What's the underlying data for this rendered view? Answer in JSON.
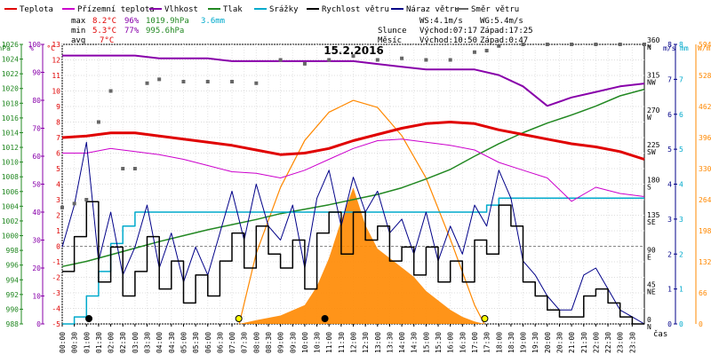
{
  "legend": [
    {
      "label": "Teplota",
      "color": "#e00000"
    },
    {
      "label": "Přízemní teplota",
      "color": "#cc00cc"
    },
    {
      "label": "Vlhkost",
      "color": "#8800aa"
    },
    {
      "label": "Tlak",
      "color": "#228822"
    },
    {
      "label": "Srážky",
      "color": "#00aacc"
    },
    {
      "label": "Rychlost větru",
      "color": "#000000"
    },
    {
      "label": "Náraz větru",
      "color": "#000088"
    },
    {
      "label": "Směr větru",
      "color": "#666666"
    }
  ],
  "stats": {
    "max_label": "max",
    "max_temp": "8.2°C",
    "max_hum": "96%",
    "max_press": "1019.9hPa",
    "max_rain": "3.6mm",
    "min_label": "min",
    "min_temp": "5.3°C",
    "min_hum": "77%",
    "min_press": "995.6hPa",
    "avg_label": "avg",
    "avg_temp": "7°C"
  },
  "wind_info": {
    "ws": "WS:4.1m/s",
    "wg": "WG:5.4m/s"
  },
  "sun": {
    "label": "Slunce",
    "rise": "Východ:07:17",
    "set": "Západ:17:25"
  },
  "moon": {
    "label": "Měsíc",
    "rise": "Východ:10:50",
    "set": "Západ:0:47"
  },
  "colors": {
    "temp": "#e00000",
    "ground": "#cc00cc",
    "hum": "#8800aa",
    "press": "#228822",
    "rain": "#00aacc",
    "wind": "#000000",
    "gust": "#000088",
    "dir": "#666666",
    "solar": "#ff8800",
    "axis_hpa": "#228822",
    "axis_pct": "#8800aa",
    "axis_temp": "#e00000",
    "axis_ms": "#000088",
    "axis_mm": "#00aacc",
    "axis_solar": "#ff8800"
  },
  "chart_data": {
    "type": "line",
    "title": "15.2.2016",
    "xlabel": "čas",
    "x_ticks": [
      "00:00",
      "00:30",
      "01:00",
      "01:30",
      "02:00",
      "02:30",
      "03:00",
      "03:30",
      "04:00",
      "04:30",
      "05:00",
      "05:30",
      "06:00",
      "06:30",
      "07:00",
      "07:30",
      "08:00",
      "08:30",
      "09:00",
      "09:30",
      "10:00",
      "10:30",
      "11:00",
      "11:30",
      "12:00",
      "12:30",
      "13:00",
      "13:30",
      "14:00",
      "14:30",
      "15:00",
      "15:30",
      "16:00",
      "16:30",
      "17:00",
      "17:30",
      "18:00",
      "18:30",
      "19:00",
      "19:30",
      "20:00",
      "20:30",
      "21:00",
      "21:30",
      "22:00",
      "22:30",
      "23:00",
      "23:30"
    ],
    "axes": {
      "hpa": {
        "unit": "hPa",
        "ticks": [
          "988",
          "990",
          "992",
          "994",
          "996",
          "998",
          "1000",
          "1002",
          "1004",
          "1006",
          "1008",
          "1010",
          "1012",
          "1014",
          "1016",
          "1018",
          "1020",
          "1022",
          "1024",
          "1026"
        ],
        "range": [
          988,
          1026
        ]
      },
      "pct": {
        "unit": "%",
        "ticks": [
          "0",
          "10",
          "20",
          "30",
          "40",
          "50",
          "60",
          "70",
          "80",
          "90",
          "100"
        ],
        "range": [
          0,
          100
        ]
      },
      "temp": {
        "unit": "°C",
        "ticks": [
          "-5",
          "-4",
          "-3",
          "-2",
          "-1",
          "0",
          "1",
          "2",
          "3",
          "4",
          "5",
          "6",
          "7",
          "8",
          "9",
          "10",
          "11",
          "12",
          "13"
        ],
        "range": [
          -5,
          13
        ]
      },
      "dir": {
        "unit": "°",
        "ticks": [
          "0 N",
          "45 NE",
          "90 E",
          "135 SE",
          "180 S",
          "225 SW",
          "270 W",
          "315 NW",
          "360 N"
        ],
        "range": [
          0,
          360
        ]
      },
      "ms": {
        "unit": "m/s",
        "ticks": [
          "0",
          "1",
          "2",
          "3",
          "4",
          "5",
          "6",
          "7",
          "8"
        ],
        "range": [
          0,
          8
        ]
      },
      "mm": {
        "unit": "mm",
        "ticks": [
          "0",
          "1",
          "2",
          "3",
          "4",
          "5",
          "6",
          "7",
          "8"
        ],
        "range": [
          0,
          8
        ]
      },
      "solar": {
        "unit": "W/m²",
        "ticks": [
          "0",
          "66",
          "132",
          "198",
          "264",
          "330",
          "396",
          "462",
          "528",
          "594"
        ],
        "range": [
          0,
          594
        ]
      }
    },
    "series": [
      {
        "name": "Teplota",
        "axis": "temp",
        "x": [
          0,
          1,
          2,
          3,
          4,
          5,
          6,
          7,
          8,
          9,
          10,
          11,
          12,
          13,
          14,
          15,
          16,
          17,
          18,
          19,
          20,
          21,
          22,
          23,
          24
        ],
        "values": [
          7.0,
          7.1,
          7.3,
          7.3,
          7.1,
          6.9,
          6.7,
          6.5,
          6.2,
          5.9,
          6.0,
          6.3,
          6.8,
          7.2,
          7.6,
          7.9,
          8.0,
          7.9,
          7.5,
          7.2,
          6.9,
          6.6,
          6.4,
          6.1,
          5.6
        ]
      },
      {
        "name": "Přízemní teplota",
        "axis": "temp",
        "x": [
          0,
          1,
          2,
          3,
          4,
          5,
          6,
          7,
          8,
          9,
          10,
          11,
          12,
          13,
          14,
          15,
          16,
          17,
          18,
          19,
          20,
          21,
          22,
          23,
          24
        ],
        "values": [
          6.0,
          6.0,
          6.3,
          6.1,
          5.9,
          5.6,
          5.2,
          4.8,
          4.7,
          4.4,
          4.9,
          5.6,
          6.3,
          6.8,
          6.9,
          6.7,
          6.5,
          6.2,
          5.4,
          4.9,
          4.4,
          2.9,
          3.8,
          3.4,
          3.2
        ]
      },
      {
        "name": "Vlhkost",
        "axis": "pct",
        "x": [
          0,
          1,
          2,
          3,
          4,
          5,
          6,
          7,
          8,
          9,
          10,
          11,
          12,
          13,
          14,
          15,
          16,
          17,
          18,
          19,
          20,
          21,
          22,
          23,
          24
        ],
        "values": [
          96,
          96,
          96,
          96,
          95,
          95,
          95,
          94,
          94,
          94,
          94,
          94,
          94,
          93,
          92,
          91,
          91,
          91,
          89,
          85,
          78,
          81,
          83,
          85,
          86
        ]
      },
      {
        "name": "Tlak",
        "axis": "hpa",
        "x": [
          0,
          1,
          2,
          3,
          4,
          5,
          6,
          7,
          8,
          9,
          10,
          11,
          12,
          13,
          14,
          15,
          16,
          17,
          18,
          19,
          20,
          21,
          22,
          23,
          24
        ],
        "values": [
          995.8,
          996.5,
          997.4,
          998.3,
          999.2,
          1000.0,
          1000.8,
          1001.5,
          1002.2,
          1003.0,
          1003.6,
          1004.2,
          1004.9,
          1005.6,
          1006.5,
          1007.7,
          1009.0,
          1010.8,
          1012.5,
          1014.0,
          1015.3,
          1016.4,
          1017.6,
          1019.0,
          1019.9
        ]
      },
      {
        "name": "Srážky",
        "axis": "mm",
        "x": [
          0,
          0.5,
          1,
          1.5,
          2,
          2.5,
          3,
          6,
          10,
          14,
          17,
          17.5,
          18,
          20,
          22,
          24
        ],
        "values": [
          0,
          0.2,
          0.8,
          1.5,
          2.3,
          2.8,
          3.2,
          3.2,
          3.2,
          3.2,
          3.2,
          3.4,
          3.6,
          3.6,
          3.6,
          3.6
        ]
      },
      {
        "name": "Rychlost větru",
        "axis": "ms",
        "x": [
          0,
          0.5,
          1,
          1.5,
          2,
          2.5,
          3,
          3.5,
          4,
          4.5,
          5,
          5.5,
          6,
          6.5,
          7,
          7.5,
          8,
          8.5,
          9,
          9.5,
          10,
          10.5,
          11,
          11.5,
          12,
          12.5,
          13,
          13.5,
          14,
          14.5,
          15,
          15.5,
          16,
          16.5,
          17,
          17.5,
          18,
          18.5,
          19,
          19.5,
          20,
          20.5,
          21,
          21.5,
          22,
          22.5,
          23,
          23.5,
          24
        ],
        "values": [
          1.5,
          2.5,
          3.5,
          1.2,
          2.2,
          0.8,
          1.5,
          2.5,
          1.0,
          1.8,
          0.6,
          1.4,
          0.8,
          1.8,
          2.6,
          1.6,
          2.8,
          2.0,
          1.6,
          2.4,
          1.0,
          2.6,
          3.2,
          2.0,
          3.2,
          2.4,
          2.8,
          1.8,
          2.2,
          1.4,
          2.2,
          1.2,
          1.8,
          1.2,
          2.4,
          2.0,
          3.4,
          2.8,
          1.2,
          0.8,
          0.4,
          0.2,
          0.2,
          0.8,
          1.0,
          0.6,
          0.2,
          0.0,
          0.0
        ]
      },
      {
        "name": "Náraz větru",
        "axis": "ms",
        "x": [
          0,
          0.5,
          1,
          1.5,
          2,
          2.5,
          3,
          3.5,
          4,
          4.5,
          5,
          5.5,
          6,
          6.5,
          7,
          7.5,
          8,
          8.5,
          9,
          9.5,
          10,
          10.5,
          11,
          11.5,
          12,
          12.5,
          13,
          13.5,
          14,
          14.5,
          15,
          15.5,
          16,
          16.5,
          17,
          17.5,
          18,
          18.5,
          19,
          19.5,
          20,
          20.5,
          21,
          21.5,
          22,
          22.5,
          23,
          23.5,
          24
        ],
        "values": [
          2.2,
          3.4,
          5.2,
          1.8,
          3.2,
          1.4,
          2.2,
          3.4,
          1.6,
          2.6,
          1.2,
          2.2,
          1.4,
          2.6,
          3.8,
          2.4,
          4.0,
          2.8,
          2.4,
          3.4,
          1.6,
          3.6,
          4.4,
          2.8,
          4.2,
          3.2,
          3.8,
          2.6,
          3.0,
          2.0,
          3.2,
          1.8,
          2.8,
          2.0,
          3.4,
          2.8,
          4.4,
          3.6,
          1.8,
          1.4,
          0.8,
          0.4,
          0.4,
          1.4,
          1.6,
          1.0,
          0.4,
          0.2,
          0.0
        ]
      },
      {
        "name": "Směr větru",
        "axis": "dir",
        "x": [
          0,
          0.5,
          1,
          1.5,
          2,
          2.5,
          3,
          3.5,
          4,
          5,
          6,
          7,
          8,
          9,
          10,
          11,
          12,
          13,
          14,
          15,
          16,
          17,
          17.5,
          18,
          19,
          20,
          21,
          22,
          23,
          24
        ],
        "values": [
          150,
          155,
          160,
          260,
          300,
          200,
          200,
          310,
          315,
          312,
          312,
          312,
          310,
          340,
          335,
          340,
          345,
          340,
          342,
          340,
          340,
          350,
          352,
          358,
          360,
          360,
          360,
          360,
          360,
          360
        ]
      },
      {
        "name": "Solar",
        "axis": "solar",
        "x": [
          7.3,
          8,
          9,
          10,
          10.5,
          11,
          11.5,
          12,
          12.5,
          13,
          13.5,
          14,
          14.5,
          15,
          15.5,
          16,
          16.5,
          17,
          17.4
        ],
        "values": [
          0,
          8,
          18,
          40,
          80,
          140,
          220,
          290,
          210,
          160,
          140,
          120,
          100,
          70,
          50,
          30,
          15,
          5,
          0
        ]
      },
      {
        "name": "Sun elevation",
        "axis": "solar",
        "x": [
          7.3,
          8,
          9,
          10,
          11,
          12,
          13,
          14,
          15,
          16,
          17,
          17.4
        ],
        "values": [
          0,
          150,
          290,
          390,
          450,
          475,
          460,
          400,
          310,
          180,
          40,
          0
        ]
      }
    ]
  }
}
